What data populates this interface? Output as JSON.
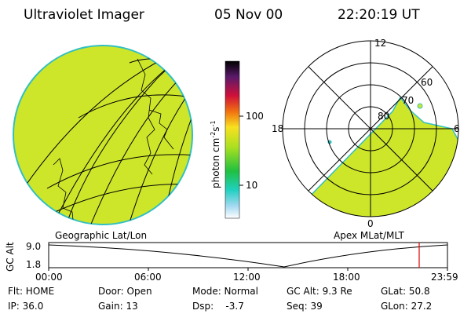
{
  "header": {
    "instrument": "Ultraviolet Imager",
    "date": "05 Nov 00",
    "time": "22:20:19 UT"
  },
  "colorbar": {
    "unit": "photon cm",
    "exp1": "-2",
    "unit2": "s",
    "exp2": "-1",
    "ticks": [
      "100",
      "10"
    ]
  },
  "polar": {
    "top": "12",
    "left": "18",
    "right": "6",
    "bottom": "0",
    "rings": [
      "80",
      "70",
      "60"
    ]
  },
  "panels": {
    "left_caption": "Geographic Lat/Lon",
    "right_caption": "Apex MLat/MLT"
  },
  "timeline": {
    "axis_label": "GC Alt",
    "y_top": "9.0",
    "y_bottom": "1.8",
    "times": [
      "00:00",
      "06:00",
      "12:00",
      "18:00",
      "23:59"
    ]
  },
  "status": [
    [
      "Flt: HOME",
      "Door: Open",
      "Mode: Normal",
      "GC Alt: 9.3 Re",
      "GLat: 50.8"
    ],
    [
      "IP: 36.0",
      "Gain: 13",
      "Dsp:    -3.7",
      "Seq: 39",
      "GLon: 27.2"
    ]
  ]
}
